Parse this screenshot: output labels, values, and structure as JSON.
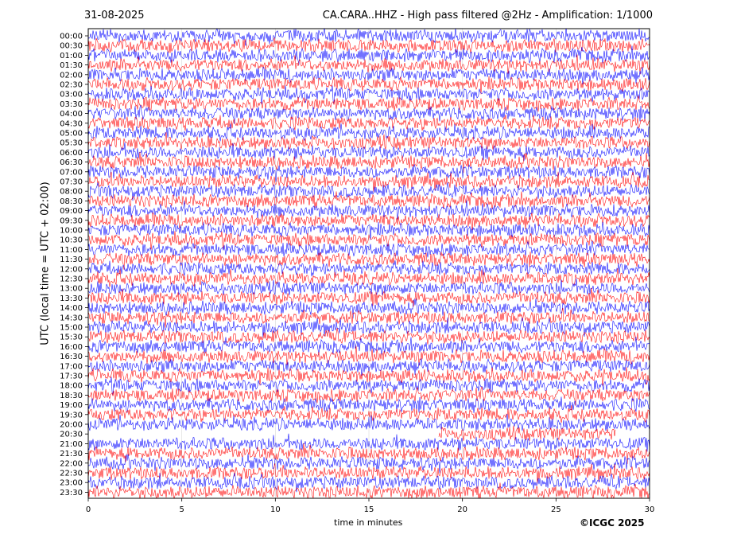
{
  "header": {
    "date": "31-08-2025",
    "title": "CA.CARA..HHZ - High pass filtered @2Hz - Amplification: 1/1000"
  },
  "copyright": "©ICGC 2025",
  "colors": {
    "trace_red": "#ff0000",
    "trace_blue": "#0000ff",
    "gap": "#ffffff"
  },
  "chart_data": {
    "type": "line",
    "description_type": "helicorder",
    "xlabel": "time in minutes",
    "ylabel": "UTC (local time = UTC + 02:00)",
    "xlim": [
      0,
      30
    ],
    "x_ticks": [
      0,
      5,
      10,
      15,
      20,
      25,
      30
    ],
    "y_ticks": [
      "00:00",
      "00:30",
      "01:00",
      "01:30",
      "02:00",
      "02:30",
      "03:00",
      "03:30",
      "04:00",
      "04:30",
      "05:00",
      "05:30",
      "06:00",
      "06:30",
      "07:00",
      "07:30",
      "08:00",
      "08:30",
      "09:00",
      "09:30",
      "10:00",
      "10:30",
      "11:00",
      "11:30",
      "12:00",
      "12:30",
      "13:00",
      "13:30",
      "14:00",
      "14:30",
      "15:00",
      "15:30",
      "16:00",
      "16:30",
      "17:00",
      "17:30",
      "18:00",
      "18:30",
      "19:00",
      "19:30",
      "20:00",
      "20:30",
      "21:00",
      "21:30",
      "22:00",
      "22:30",
      "23:00",
      "23:30"
    ],
    "trace_color_cycle": [
      "blue",
      "red"
    ],
    "data_gaps": [
      {
        "row": "20:30",
        "x_range": [
          0,
          18.7
        ]
      },
      {
        "row": "20:30",
        "x_range": [
          28.2,
          30
        ]
      }
    ]
  }
}
